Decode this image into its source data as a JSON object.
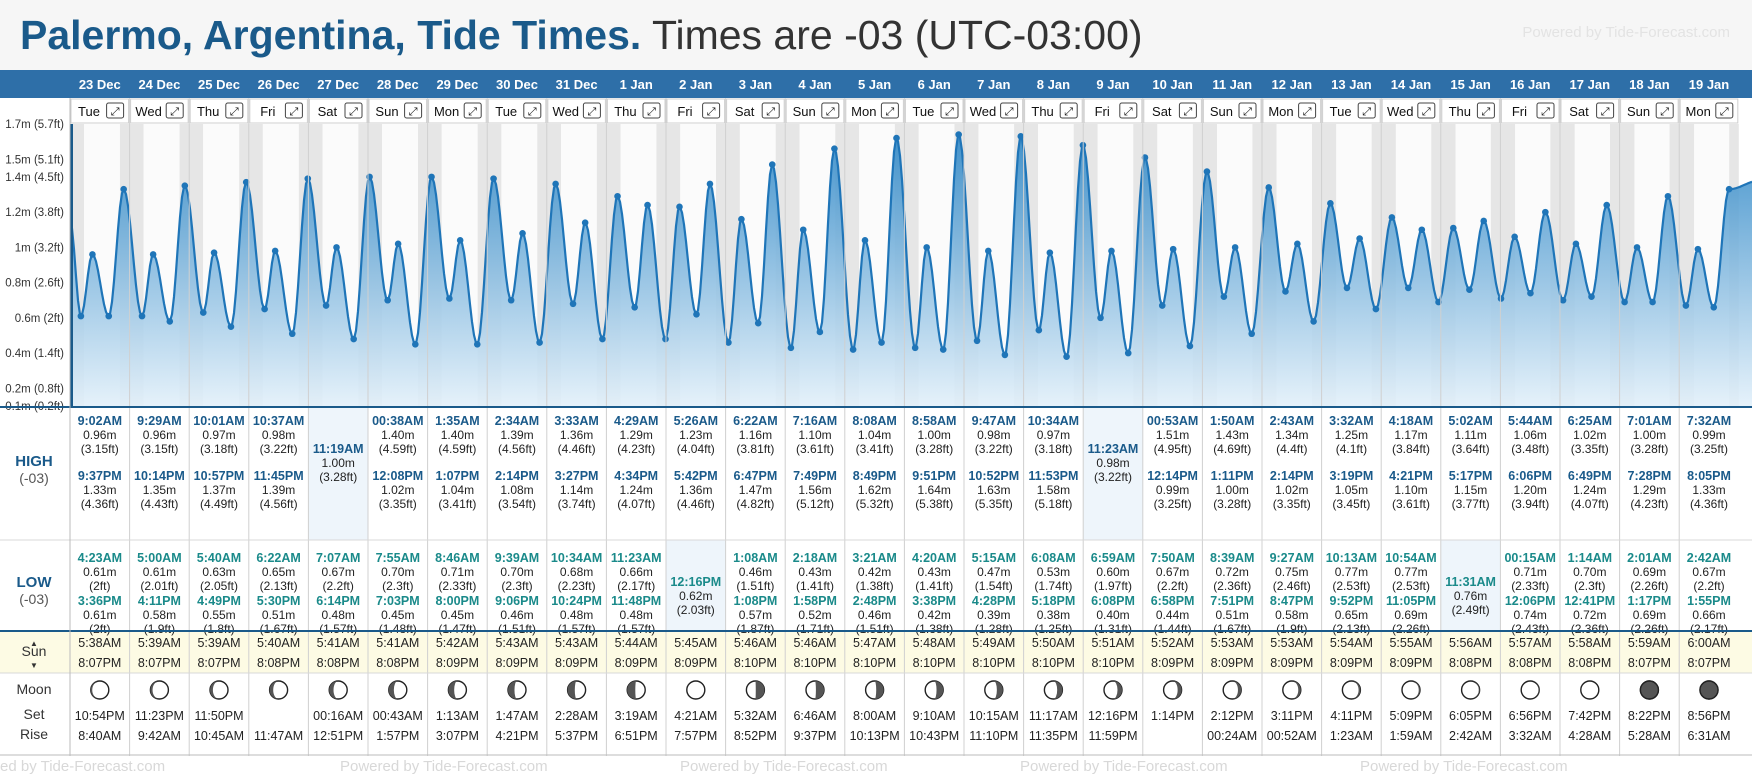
{
  "title": {
    "place": "Palermo, Argentina, Tide Times.",
    "tz": "Times are -03 (UTC-03:00)"
  },
  "watermark": "Powered by Tide-Forecast.com",
  "watermark_bottom": [
    "ed by Tide-Forecast.com",
    "Powered by Tide-Forecast.com",
    "Powered by Tide-Forecast.com",
    "Powered by Tide-Forecast.com",
    "Powered by Tide-Forecast.com"
  ],
  "labels": {
    "high": "HIGH",
    "low": "LOW",
    "tz_short": "(-03)",
    "sun": "Sun",
    "moon": "Moon",
    "set": "Set",
    "rise": "Rise"
  },
  "y_axis": [
    {
      "v": 0.1,
      "label": "0.1m (0.2ft)"
    },
    {
      "v": 0.2,
      "label": "0.2m (0.8ft)"
    },
    {
      "v": 0.4,
      "label": "0.4m (1.4ft)"
    },
    {
      "v": 0.6,
      "label": "0.6m (2ft)"
    },
    {
      "v": 0.8,
      "label": "0.8m (2.6ft)"
    },
    {
      "v": 1.0,
      "label": "1m (3.2ft)"
    },
    {
      "v": 1.2,
      "label": "1.2m (3.8ft)"
    },
    {
      "v": 1.4,
      "label": "1.4m (4.5ft)"
    },
    {
      "v": 1.5,
      "label": "1.5m (5.1ft)"
    },
    {
      "v": 1.7,
      "label": "1.7m (5.7ft)"
    }
  ],
  "colors": {
    "header_bg": "#2e6fa8",
    "accent": "#1a5a8a",
    "low_color": "#1a8a8a",
    "tide_fill_top": "#2c86c6",
    "tide_fill_bottom": "#e2f0fa",
    "sun_bg": "#fdfbe4"
  },
  "days": [
    {
      "date": "23 Dec",
      "dow": "Tue",
      "h1": [
        "9:02AM",
        "0.96m",
        "(3.15ft)"
      ],
      "h2": [
        "9:37PM",
        "1.33m",
        "(4.36ft)"
      ],
      "l1": [
        "4:23AM",
        "0.61m",
        "(2ft)"
      ],
      "l2": [
        "3:36PM",
        "0.61m",
        "(2ft)"
      ],
      "sunrise": "5:38AM",
      "sunset": "8:07PM",
      "moon_phase": 0.08,
      "moon_set": "10:54PM",
      "moon_rise": "8:40AM"
    },
    {
      "date": "24 Dec",
      "dow": "Wed",
      "h1": [
        "9:29AM",
        "0.96m",
        "(3.15ft)"
      ],
      "h2": [
        "10:14PM",
        "1.35m",
        "(4.43ft)"
      ],
      "l1": [
        "5:00AM",
        "0.61m",
        "(2.01ft)"
      ],
      "l2": [
        "4:11PM",
        "0.58m",
        "(1.9ft)"
      ],
      "sunrise": "5:39AM",
      "sunset": "8:07PM",
      "moon_phase": 0.12,
      "moon_set": "11:23PM",
      "moon_rise": "9:42AM"
    },
    {
      "date": "25 Dec",
      "dow": "Thu",
      "h1": [
        "10:01AM",
        "0.97m",
        "(3.18ft)"
      ],
      "h2": [
        "10:57PM",
        "1.37m",
        "(4.49ft)"
      ],
      "l1": [
        "5:40AM",
        "0.63m",
        "(2.05ft)"
      ],
      "l2": [
        "4:49PM",
        "0.55m",
        "(1.8ft)"
      ],
      "sunrise": "5:39AM",
      "sunset": "8:07PM",
      "moon_phase": 0.16,
      "moon_set": "11:50PM",
      "moon_rise": "10:45AM"
    },
    {
      "date": "26 Dec",
      "dow": "Fri",
      "h1": [
        "10:37AM",
        "0.98m",
        "(3.22ft)"
      ],
      "h2": [
        "11:45PM",
        "1.39m",
        "(4.56ft)"
      ],
      "l1": [
        "6:22AM",
        "0.65m",
        "(2.13ft)"
      ],
      "l2": [
        "5:30PM",
        "0.51m",
        "(1.67ft)"
      ],
      "sunrise": "5:40AM",
      "sunset": "8:08PM",
      "moon_phase": 0.2,
      "moon_set": "",
      "moon_rise": "11:47AM"
    },
    {
      "date": "27 Dec",
      "dow": "Sat",
      "h1": [
        "11:19AM",
        "1.00m",
        "(3.28ft)"
      ],
      "h2": null,
      "l1": [
        "7:07AM",
        "0.67m",
        "(2.2ft)"
      ],
      "l2": [
        "6:14PM",
        "0.48m",
        "(1.57ft)"
      ],
      "sunrise": "5:41AM",
      "sunset": "8:08PM",
      "moon_phase": 0.24,
      "moon_set": "00:16AM",
      "moon_rise": "12:51PM"
    },
    {
      "date": "28 Dec",
      "dow": "Sun",
      "h1": [
        "00:38AM",
        "1.40m",
        "(4.59ft)"
      ],
      "h2": [
        "12:08PM",
        "1.02m",
        "(3.35ft)"
      ],
      "l1": [
        "7:55AM",
        "0.70m",
        "(2.3ft)"
      ],
      "l2": [
        "7:03PM",
        "0.45m",
        "(1.48ft)"
      ],
      "sunrise": "5:41AM",
      "sunset": "8:08PM",
      "moon_phase": 0.28,
      "moon_set": "00:43AM",
      "moon_rise": "1:57PM"
    },
    {
      "date": "29 Dec",
      "dow": "Mon",
      "h1": [
        "1:35AM",
        "1.40m",
        "(4.59ft)"
      ],
      "h2": [
        "1:07PM",
        "1.04m",
        "(3.41ft)"
      ],
      "l1": [
        "8:46AM",
        "0.71m",
        "(2.33ft)"
      ],
      "l2": [
        "8:00PM",
        "0.45m",
        "(1.47ft)"
      ],
      "sunrise": "5:42AM",
      "sunset": "8:09PM",
      "moon_phase": 0.32,
      "moon_set": "1:13AM",
      "moon_rise": "3:07PM"
    },
    {
      "date": "30 Dec",
      "dow": "Tue",
      "h1": [
        "2:34AM",
        "1.39m",
        "(4.56ft)"
      ],
      "h2": [
        "2:14PM",
        "1.08m",
        "(3.54ft)"
      ],
      "l1": [
        "9:39AM",
        "0.70m",
        "(2.3ft)"
      ],
      "l2": [
        "9:06PM",
        "0.46m",
        "(1.51ft)"
      ],
      "sunrise": "5:43AM",
      "sunset": "8:09PM",
      "moon_phase": 0.36,
      "moon_set": "1:47AM",
      "moon_rise": "4:21PM"
    },
    {
      "date": "31 Dec",
      "dow": "Wed",
      "h1": [
        "3:33AM",
        "1.36m",
        "(4.46ft)"
      ],
      "h2": [
        "3:27PM",
        "1.14m",
        "(3.74ft)"
      ],
      "l1": [
        "10:34AM",
        "0.68m",
        "(2.23ft)"
      ],
      "l2": [
        "10:24PM",
        "0.48m",
        "(1.57ft)"
      ],
      "sunrise": "5:43AM",
      "sunset": "8:09PM",
      "moon_phase": 0.4,
      "moon_set": "2:28AM",
      "moon_rise": "5:37PM"
    },
    {
      "date": "1 Jan",
      "dow": "Thu",
      "h1": [
        "4:29AM",
        "1.29m",
        "(4.23ft)"
      ],
      "h2": [
        "4:34PM",
        "1.24m",
        "(4.07ft)"
      ],
      "l1": [
        "11:23AM",
        "0.66m",
        "(2.17ft)"
      ],
      "l2": [
        "11:48PM",
        "0.48m",
        "(1.57ft)"
      ],
      "sunrise": "5:44AM",
      "sunset": "8:09PM",
      "moon_phase": 0.45,
      "moon_set": "3:19AM",
      "moon_rise": "6:51PM"
    },
    {
      "date": "2 Jan",
      "dow": "Fri",
      "h1": [
        "5:26AM",
        "1.23m",
        "(4.04ft)"
      ],
      "h2": [
        "5:42PM",
        "1.36m",
        "(4.46ft)"
      ],
      "l1": [
        "12:16PM",
        "0.62m",
        "(2.03ft)"
      ],
      "l2": null,
      "sunrise": "5:45AM",
      "sunset": "8:09PM",
      "moon_phase": 0.5,
      "moon_set": "4:21AM",
      "moon_rise": "7:57PM"
    },
    {
      "date": "3 Jan",
      "dow": "Sat",
      "h1": [
        "6:22AM",
        "1.16m",
        "(3.81ft)"
      ],
      "h2": [
        "6:47PM",
        "1.47m",
        "(4.82ft)"
      ],
      "l1": [
        "1:08AM",
        "0.46m",
        "(1.51ft)"
      ],
      "l2": [
        "1:08PM",
        "0.57m",
        "(1.87ft)"
      ],
      "sunrise": "5:46AM",
      "sunset": "8:10PM",
      "moon_phase": 0.52,
      "moon_set": "5:32AM",
      "moon_rise": "8:52PM"
    },
    {
      "date": "4 Jan",
      "dow": "Sun",
      "h1": [
        "7:16AM",
        "1.10m",
        "(3.61ft)"
      ],
      "h2": [
        "7:49PM",
        "1.56m",
        "(5.12ft)"
      ],
      "l1": [
        "2:18AM",
        "0.43m",
        "(1.41ft)"
      ],
      "l2": [
        "1:58PM",
        "0.52m",
        "(1.71ft)"
      ],
      "sunrise": "5:46AM",
      "sunset": "8:10PM",
      "moon_phase": 0.55,
      "moon_set": "6:46AM",
      "moon_rise": "9:37PM"
    },
    {
      "date": "5 Jan",
      "dow": "Mon",
      "h1": [
        "8:08AM",
        "1.04m",
        "(3.41ft)"
      ],
      "h2": [
        "8:49PM",
        "1.62m",
        "(5.32ft)"
      ],
      "l1": [
        "3:21AM",
        "0.42m",
        "(1.38ft)"
      ],
      "l2": [
        "2:48PM",
        "0.46m",
        "(1.51ft)"
      ],
      "sunrise": "5:47AM",
      "sunset": "8:10PM",
      "moon_phase": 0.59,
      "moon_set": "8:00AM",
      "moon_rise": "10:13PM"
    },
    {
      "date": "6 Jan",
      "dow": "Tue",
      "h1": [
        "8:58AM",
        "1.00m",
        "(3.28ft)"
      ],
      "h2": [
        "9:51PM",
        "1.64m",
        "(5.38ft)"
      ],
      "l1": [
        "4:20AM",
        "0.43m",
        "(1.41ft)"
      ],
      "l2": [
        "3:38PM",
        "0.42m",
        "(1.38ft)"
      ],
      "sunrise": "5:48AM",
      "sunset": "8:10PM",
      "moon_phase": 0.63,
      "moon_set": "9:10AM",
      "moon_rise": "10:43PM"
    },
    {
      "date": "7 Jan",
      "dow": "Wed",
      "h1": [
        "9:47AM",
        "0.98m",
        "(3.22ft)"
      ],
      "h2": [
        "10:52PM",
        "1.63m",
        "(5.35ft)"
      ],
      "l1": [
        "5:15AM",
        "0.47m",
        "(1.54ft)"
      ],
      "l2": [
        "4:28PM",
        "0.39m",
        "(1.28ft)"
      ],
      "sunrise": "5:49AM",
      "sunset": "8:10PM",
      "moon_phase": 0.67,
      "moon_set": "10:15AM",
      "moon_rise": "11:10PM"
    },
    {
      "date": "8 Jan",
      "dow": "Thu",
      "h1": [
        "10:34AM",
        "0.97m",
        "(3.18ft)"
      ],
      "h2": [
        "11:53PM",
        "1.58m",
        "(5.18ft)"
      ],
      "l1": [
        "6:08AM",
        "0.53m",
        "(1.74ft)"
      ],
      "l2": [
        "5:18PM",
        "0.38m",
        "(1.25ft)"
      ],
      "sunrise": "5:50AM",
      "sunset": "8:10PM",
      "moon_phase": 0.71,
      "moon_set": "11:17AM",
      "moon_rise": "11:35PM"
    },
    {
      "date": "9 Jan",
      "dow": "Fri",
      "h1": [
        "11:23AM",
        "0.98m",
        "(3.22ft)"
      ],
      "h2": null,
      "l1": [
        "6:59AM",
        "0.60m",
        "(1.97ft)"
      ],
      "l2": [
        "6:08PM",
        "0.40m",
        "(1.31ft)"
      ],
      "sunrise": "5:51AM",
      "sunset": "8:10PM",
      "moon_phase": 0.75,
      "moon_set": "12:16PM",
      "moon_rise": "11:59PM"
    },
    {
      "date": "10 Jan",
      "dow": "Sat",
      "h1": [
        "00:53AM",
        "1.51m",
        "(4.95ft)"
      ],
      "h2": [
        "12:14PM",
        "0.99m",
        "(3.25ft)"
      ],
      "l1": [
        "7:50AM",
        "0.67m",
        "(2.2ft)"
      ],
      "l2": [
        "6:58PM",
        "0.44m",
        "(1.44ft)"
      ],
      "sunrise": "5:52AM",
      "sunset": "8:09PM",
      "moon_phase": 0.78,
      "moon_set": "1:14PM",
      "moon_rise": ""
    },
    {
      "date": "11 Jan",
      "dow": "Sun",
      "h1": [
        "1:50AM",
        "1.43m",
        "(4.69ft)"
      ],
      "h2": [
        "1:11PM",
        "1.00m",
        "(3.28ft)"
      ],
      "l1": [
        "8:39AM",
        "0.72m",
        "(2.36ft)"
      ],
      "l2": [
        "7:51PM",
        "0.51m",
        "(1.67ft)"
      ],
      "sunrise": "5:53AM",
      "sunset": "8:09PM",
      "moon_phase": 0.82,
      "moon_set": "2:12PM",
      "moon_rise": "00:24AM"
    },
    {
      "date": "12 Jan",
      "dow": "Mon",
      "h1": [
        "2:43AM",
        "1.34m",
        "(4.4ft)"
      ],
      "h2": [
        "2:14PM",
        "1.02m",
        "(3.35ft)"
      ],
      "l1": [
        "9:27AM",
        "0.75m",
        "(2.46ft)"
      ],
      "l2": [
        "8:47PM",
        "0.58m",
        "(1.9ft)"
      ],
      "sunrise": "5:53AM",
      "sunset": "8:09PM",
      "moon_phase": 0.86,
      "moon_set": "3:11PM",
      "moon_rise": "00:52AM"
    },
    {
      "date": "13 Jan",
      "dow": "Tue",
      "h1": [
        "3:32AM",
        "1.25m",
        "(4.1ft)"
      ],
      "h2": [
        "3:19PM",
        "1.05m",
        "(3.45ft)"
      ],
      "l1": [
        "10:13AM",
        "0.77m",
        "(2.53ft)"
      ],
      "l2": [
        "9:52PM",
        "0.65m",
        "(2.13ft)"
      ],
      "sunrise": "5:54AM",
      "sunset": "8:09PM",
      "moon_phase": 0.9,
      "moon_set": "4:11PM",
      "moon_rise": "1:23AM"
    },
    {
      "date": "14 Jan",
      "dow": "Wed",
      "h1": [
        "4:18AM",
        "1.17m",
        "(3.84ft)"
      ],
      "h2": [
        "4:21PM",
        "1.10m",
        "(3.61ft)"
      ],
      "l1": [
        "10:54AM",
        "0.77m",
        "(2.53ft)"
      ],
      "l2": [
        "11:05PM",
        "0.69m",
        "(2.26ft)"
      ],
      "sunrise": "5:55AM",
      "sunset": "8:09PM",
      "moon_phase": 0.93,
      "moon_set": "5:09PM",
      "moon_rise": "1:59AM"
    },
    {
      "date": "15 Jan",
      "dow": "Thu",
      "h1": [
        "5:02AM",
        "1.11m",
        "(3.64ft)"
      ],
      "h2": [
        "5:17PM",
        "1.15m",
        "(3.77ft)"
      ],
      "l1": [
        "11:31AM",
        "0.76m",
        "(2.49ft)"
      ],
      "l2": null,
      "sunrise": "5:56AM",
      "sunset": "8:08PM",
      "moon_phase": 0.96,
      "moon_set": "6:05PM",
      "moon_rise": "2:42AM"
    },
    {
      "date": "16 Jan",
      "dow": "Fri",
      "h1": [
        "5:44AM",
        "1.06m",
        "(3.48ft)"
      ],
      "h2": [
        "6:06PM",
        "1.20m",
        "(3.94ft)"
      ],
      "l1": [
        "00:15AM",
        "0.71m",
        "(2.33ft)"
      ],
      "l2": [
        "12:06PM",
        "0.74m",
        "(2.43ft)"
      ],
      "sunrise": "5:57AM",
      "sunset": "8:08PM",
      "moon_phase": 0.98,
      "moon_set": "6:56PM",
      "moon_rise": "3:32AM"
    },
    {
      "date": "17 Jan",
      "dow": "Sat",
      "h1": [
        "6:25AM",
        "1.02m",
        "(3.35ft)"
      ],
      "h2": [
        "6:49PM",
        "1.24m",
        "(4.07ft)"
      ],
      "l1": [
        "1:14AM",
        "0.70m",
        "(2.3ft)"
      ],
      "l2": [
        "12:41PM",
        "0.72m",
        "(2.36ft)"
      ],
      "sunrise": "5:58AM",
      "sunset": "8:08PM",
      "moon_phase": 1.0,
      "moon_set": "7:42PM",
      "moon_rise": "4:28AM"
    },
    {
      "date": "18 Jan",
      "dow": "Sun",
      "h1": [
        "7:01AM",
        "1.00m",
        "(3.28ft)"
      ],
      "h2": [
        "7:28PM",
        "1.29m",
        "(4.23ft)"
      ],
      "l1": [
        "2:01AM",
        "0.69m",
        "(2.26ft)"
      ],
      "l2": [
        "1:17PM",
        "0.69m",
        "(2.26ft)"
      ],
      "sunrise": "5:59AM",
      "sunset": "8:07PM",
      "moon_phase": 0.0,
      "moon_set": "8:22PM",
      "moon_rise": "5:28AM"
    },
    {
      "date": "19 Jan",
      "dow": "Mon",
      "h1": [
        "7:32AM",
        "0.99m",
        "(3.25ft)"
      ],
      "h2": [
        "8:05PM",
        "1.33m",
        "(4.36ft)"
      ],
      "l1": [
        "2:42AM",
        "0.67m",
        "(2.2ft)"
      ],
      "l2": [
        "1:55PM",
        "0.66m",
        "(2.17ft)"
      ],
      "sunrise": "6:00AM",
      "sunset": "8:07PM",
      "moon_phase": 0.02,
      "moon_set": "8:56PM",
      "moon_rise": "6:31AM"
    }
  ]
}
